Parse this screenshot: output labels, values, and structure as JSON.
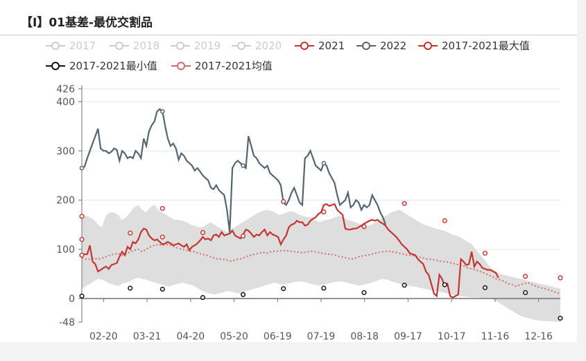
{
  "title": "【I】01基差-最优交割品",
  "colors": {
    "s2021": "#c23531",
    "s2022": "#546570",
    "max": "#c23531",
    "min": "#111111",
    "avg": "#d26a6a",
    "band": "#dedede",
    "inactive": "#cccccc",
    "axis": "#6e7079",
    "grid": "#e0e6f1"
  },
  "chart_data": {
    "type": "line",
    "title": "【I】01基差-最优交割品",
    "x_ticks": [
      "02-20",
      "03-21",
      "04-20",
      "05-20",
      "06-19",
      "07-19",
      "08-18",
      "09-17",
      "10-17",
      "11-16",
      "12-16"
    ],
    "y_ticks": [
      -48,
      0,
      100,
      200,
      300,
      400,
      426
    ],
    "ylim": [
      -48,
      426
    ],
    "grid": true,
    "legend_position": "top",
    "legend": [
      {
        "name": "2017",
        "active": false
      },
      {
        "name": "2018",
        "active": false
      },
      {
        "name": "2019",
        "active": false
      },
      {
        "name": "2020",
        "active": false
      },
      {
        "name": "2021",
        "active": true
      },
      {
        "name": "2022",
        "active": true
      },
      {
        "name": "2017-2021最大值",
        "active": true
      },
      {
        "name": "2017-2021最小值",
        "active": true
      },
      {
        "name": "2017-2021均值",
        "active": true
      }
    ],
    "series": [
      {
        "name": "2021",
        "values": [
          90,
          90,
          90,
          108,
          75,
          70,
          55,
          58,
          62,
          65,
          60,
          68,
          70,
          72,
          85,
          95,
          88,
          105,
          100,
          115,
          112,
          120,
          135,
          142,
          140,
          128,
          122,
          118,
          120,
          115,
          110,
          112,
          115,
          112,
          108,
          110,
          112,
          108,
          105,
          110,
          98,
          105,
          108,
          112,
          118,
          125,
          120,
          122,
          118,
          128,
          130,
          125,
          135,
          128,
          130,
          132,
          138,
          128,
          125,
          122,
          130,
          140,
          138,
          132,
          125,
          130,
          128,
          135,
          140,
          128,
          135,
          130,
          128,
          125,
          110,
          120,
          128,
          145,
          150,
          152,
          158,
          155,
          155,
          148,
          150,
          158,
          162,
          165,
          172,
          175,
          190,
          192,
          188,
          190,
          192,
          180,
          175,
          170,
          142,
          140,
          140,
          142,
          142,
          145,
          148,
          152,
          155,
          158,
          160,
          158,
          160,
          155,
          152,
          148,
          140,
          135,
          130,
          125,
          118,
          110,
          105,
          100,
          92,
          90,
          88,
          80,
          75,
          70,
          55,
          48,
          30,
          10,
          5,
          48,
          40,
          25,
          30,
          5,
          2,
          5,
          8,
          80,
          75,
          68,
          70,
          95,
          65,
          75,
          70,
          62,
          60,
          58,
          58,
          55,
          52,
          42
        ],
        "x_from": 0,
        "x_to": 155
      },
      {
        "name": "2022",
        "values": [
          265,
          268,
          285,
          300,
          315,
          330,
          345,
          305,
          300,
          300,
          295,
          298,
          305,
          302,
          280,
          300,
          295,
          285,
          288,
          285,
          300,
          295,
          285,
          325,
          310,
          340,
          352,
          360,
          380,
          385,
          380,
          350,
          325,
          310,
          315,
          305,
          282,
          295,
          290,
          280,
          275,
          270,
          260,
          265,
          258,
          250,
          245,
          240,
          225,
          222,
          230,
          220,
          215,
          210,
          180,
          135,
          265,
          275,
          280,
          275,
          270,
          265,
          330,
          310,
          290,
          285,
          275,
          270,
          265,
          270,
          255,
          250,
          245,
          240,
          230,
          195,
          190,
          200,
          215,
          225,
          210,
          195,
          190,
          285,
          290,
          300,
          285,
          270,
          265,
          260,
          275,
          270,
          255,
          245,
          235,
          210,
          190,
          195,
          200,
          215,
          185,
          190,
          200,
          195,
          180,
          190,
          185,
          190,
          210,
          200,
          190,
          175,
          165,
          150
        ],
        "x_from": 0,
        "x_to": 113
      },
      {
        "name": "2017-2021最大值",
        "markers": [
          [
            0,
            167
          ],
          [
            0,
            120
          ],
          [
            0,
            88
          ],
          [
            18,
            133
          ],
          [
            30,
            183
          ],
          [
            30,
            125
          ],
          [
            45,
            134
          ],
          [
            60,
            127
          ],
          [
            75,
            197
          ],
          [
            90,
            176
          ],
          [
            105,
            146
          ],
          [
            120,
            193
          ],
          [
            135,
            158
          ],
          [
            150,
            92
          ],
          [
            165,
            45
          ],
          [
            178,
            42
          ]
        ]
      },
      {
        "name": "2017-2021最小值",
        "markers": [
          [
            0,
            5
          ],
          [
            18,
            21
          ],
          [
            30,
            19
          ],
          [
            45,
            2
          ],
          [
            60,
            8
          ],
          [
            75,
            20
          ],
          [
            90,
            21
          ],
          [
            105,
            12
          ],
          [
            120,
            27
          ],
          [
            135,
            28
          ],
          [
            150,
            22
          ],
          [
            165,
            12
          ],
          [
            178,
            -40
          ]
        ]
      },
      {
        "name": "2017-2021均值",
        "values": [
          82,
          80,
          80,
          82,
          80,
          82,
          85,
          88,
          90,
          92,
          88,
          90,
          95,
          98,
          100,
          95,
          100,
          105,
          108,
          110,
          108,
          110,
          108,
          105,
          102,
          100,
          98,
          96,
          95,
          92,
          90,
          88,
          85,
          82,
          80,
          80,
          78,
          76,
          78,
          80,
          82,
          85,
          88,
          90,
          92,
          94,
          92,
          95,
          96,
          96,
          98,
          97,
          96,
          95,
          94,
          93,
          95,
          96,
          95,
          93,
          92,
          90,
          90,
          88,
          85,
          84,
          82,
          80,
          82,
          85,
          87,
          88,
          90,
          92,
          94,
          95,
          96,
          95,
          94,
          92,
          90,
          88,
          88,
          86,
          84,
          82,
          80,
          80,
          78,
          76,
          75,
          74,
          72,
          70,
          68,
          66,
          62,
          60,
          58,
          55,
          52,
          48,
          45,
          40,
          38,
          35,
          30,
          28,
          25,
          28,
          30,
          32,
          28,
          25,
          22,
          20,
          18,
          15,
          12,
          10
        ],
        "x_to": 178
      },
      {
        "name": "2017-2021 range band",
        "upper": [
          170,
          168,
          165,
          160,
          150,
          145,
          170,
          175,
          175,
          170,
          160,
          165,
          175,
          185,
          190,
          180,
          175,
          185,
          190,
          180,
          175,
          170,
          165,
          160,
          160,
          158,
          155,
          150,
          148,
          145,
          145,
          150,
          155,
          150,
          145,
          140,
          135,
          140,
          145,
          150,
          155,
          160,
          165,
          170,
          175,
          178,
          180,
          178,
          175,
          170,
          172,
          175,
          178,
          175,
          170,
          168,
          165,
          165,
          160,
          155,
          158,
          160,
          162,
          165,
          168,
          165,
          160,
          158,
          155,
          152,
          150,
          148,
          150,
          155,
          160,
          165,
          170,
          175,
          178,
          180,
          175,
          170,
          165,
          160,
          155,
          150,
          148,
          145,
          142,
          140,
          138,
          135,
          130,
          128,
          125,
          120,
          115,
          110,
          100,
          90,
          80,
          70,
          60,
          55,
          50,
          48,
          46,
          44,
          42,
          40,
          38,
          36,
          34,
          32,
          30,
          28,
          26,
          24,
          22,
          20
        ],
        "lower": [
          20,
          25,
          30,
          35,
          40,
          38,
          35,
          30,
          28,
          25,
          30,
          32,
          35,
          40,
          42,
          40,
          38,
          35,
          33,
          30,
          28,
          25,
          25,
          28,
          30,
          32,
          30,
          28,
          25,
          20,
          15,
          12,
          10,
          8,
          10,
          12,
          15,
          14,
          12,
          10,
          12,
          15,
          18,
          20,
          22,
          25,
          28,
          30,
          32,
          30,
          28,
          30,
          32,
          34,
          35,
          34,
          32,
          30,
          28,
          26,
          28,
          30,
          32,
          34,
          35,
          34,
          32,
          30,
          28,
          26,
          28,
          30,
          32,
          35,
          38,
          40,
          38,
          35,
          32,
          30,
          28,
          26,
          25,
          24,
          22,
          20,
          18,
          16,
          15,
          14,
          12,
          10,
          8,
          6,
          5,
          4,
          3,
          2,
          2,
          2,
          1,
          1,
          0,
          -5,
          -10,
          -15,
          -20,
          -25,
          -30,
          -35,
          -38,
          -40,
          -42,
          -44,
          -45,
          -46,
          -46,
          -47,
          -47,
          -48
        ]
      }
    ]
  }
}
